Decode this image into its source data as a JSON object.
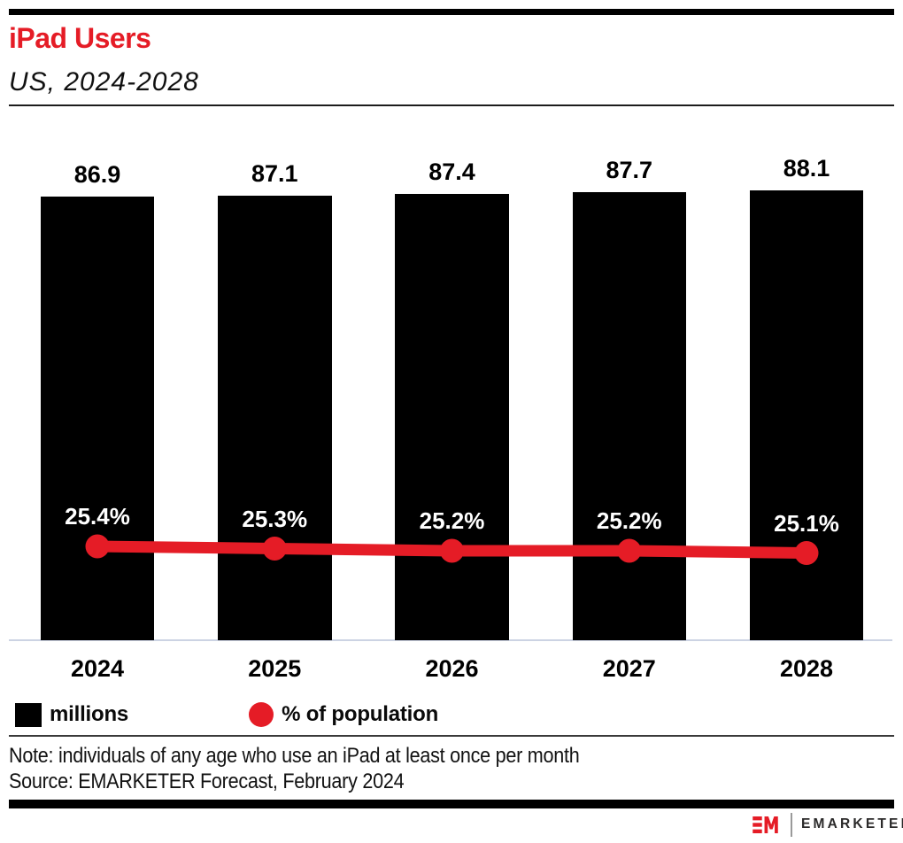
{
  "header": {
    "title": "iPad Users",
    "subtitle": "US, 2024-2028"
  },
  "chart_data": {
    "type": "bar",
    "subtype": "bar with line overlay (combo)",
    "title": "iPad Users",
    "subtitle": "US, 2024-2028",
    "categories": [
      "2024",
      "2025",
      "2026",
      "2027",
      "2028"
    ],
    "series": [
      {
        "name": "millions",
        "type": "bar",
        "values": [
          86.9,
          87.1,
          87.4,
          87.7,
          88.1
        ],
        "labels": [
          "86.9",
          "87.1",
          "87.4",
          "87.7",
          "88.1"
        ],
        "color": "#000000"
      },
      {
        "name": "% of population",
        "type": "line",
        "values": [
          25.4,
          25.3,
          25.2,
          25.2,
          25.1
        ],
        "labels": [
          "25.4%",
          "25.3%",
          "25.2%",
          "25.2%",
          "25.1%"
        ],
        "color": "#e51c26"
      }
    ],
    "xlabel": "",
    "ylabel": "",
    "grid": false,
    "legend_position": "bottom",
    "value_labels_shown": true
  },
  "legend": {
    "bar_label": "millions",
    "line_label": "% of population"
  },
  "notes": {
    "note": "Note: individuals of any age who use an iPad at least once per month",
    "source": "Source: EMARKETER Forecast, February 2024"
  },
  "footer": {
    "logo_mark": "EM",
    "logo_text": "EMARKETER"
  },
  "colors": {
    "accent_red": "#e51c26",
    "bar_black": "#000000",
    "axis_line": "#ccd3e3",
    "rule_dark": "#1c1c1c",
    "logo_text": "#2b2a2a"
  }
}
